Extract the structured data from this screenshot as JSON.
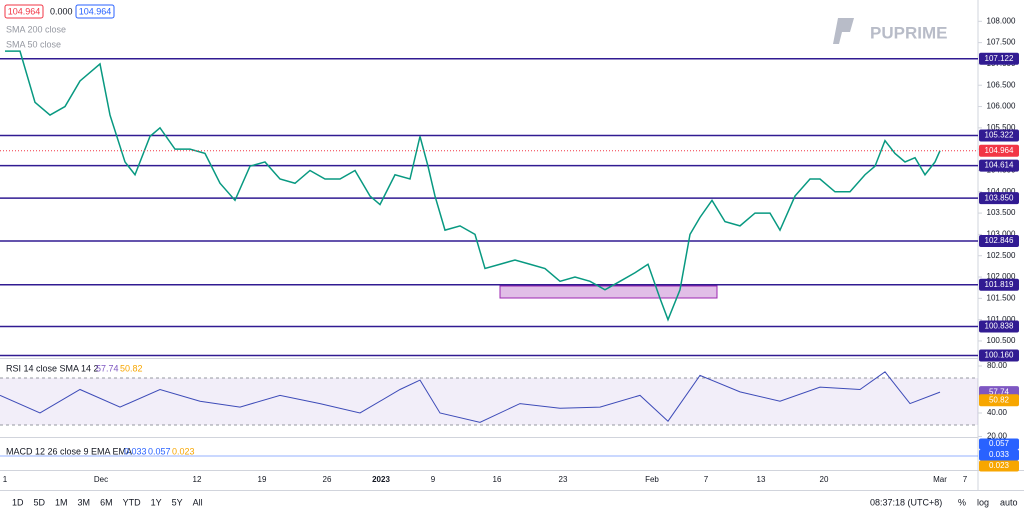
{
  "chart_data": {
    "type": "line",
    "logo": "PUPRIME",
    "legend_values": [
      "104.964",
      "0.000",
      "104.964"
    ],
    "studies": [
      "SMA 200 close",
      "SMA 50 close"
    ],
    "series": [
      {
        "name": "USD Index",
        "color": "#089981",
        "x": [
          5,
          20,
          35,
          50,
          65,
          80,
          95,
          100,
          110,
          125,
          135,
          150,
          160,
          175,
          190,
          205,
          220,
          235,
          250,
          265,
          280,
          295,
          310,
          325,
          340,
          355,
          370,
          380,
          395,
          410,
          420,
          428,
          435,
          445,
          460,
          475,
          485,
          500,
          515,
          530,
          545,
          560,
          575,
          590,
          605,
          620,
          635,
          648,
          660,
          668,
          680,
          690,
          700,
          712,
          725,
          740,
          755,
          770,
          780,
          795,
          810,
          820,
          835,
          850,
          865,
          875,
          885,
          895,
          905,
          915,
          925,
          935,
          940
        ],
        "values": [
          107.3,
          107.3,
          106.1,
          105.8,
          106.0,
          106.6,
          106.9,
          107.0,
          105.8,
          104.7,
          104.4,
          105.3,
          105.5,
          105.0,
          105.0,
          104.9,
          104.2,
          103.8,
          104.6,
          104.7,
          104.3,
          104.2,
          104.5,
          104.3,
          104.3,
          104.5,
          103.9,
          103.7,
          104.4,
          104.3,
          105.3,
          104.6,
          103.9,
          103.1,
          103.2,
          103.0,
          102.2,
          102.3,
          102.4,
          102.3,
          102.2,
          101.9,
          102.0,
          101.9,
          101.7,
          101.9,
          102.1,
          102.3,
          101.5,
          101.0,
          101.7,
          103.0,
          103.4,
          103.8,
          103.3,
          103.2,
          103.5,
          103.5,
          103.1,
          103.9,
          104.3,
          104.3,
          104.0,
          104.0,
          104.4,
          104.6,
          105.2,
          104.9,
          104.7,
          104.8,
          104.4,
          104.7,
          104.964
        ]
      }
    ],
    "current_price": {
      "value": 104.964,
      "label": "104.964"
    },
    "levels": [
      {
        "value": 107.122,
        "label": "107.122"
      },
      {
        "value": 105.322,
        "label": "105.322"
      },
      {
        "value": 104.614,
        "label": "104.614"
      },
      {
        "value": 103.85,
        "label": "103.850"
      },
      {
        "value": 102.846,
        "label": "102.846"
      },
      {
        "value": 101.819,
        "label": "101.819"
      },
      {
        "value": 100.838,
        "label": "100.838"
      },
      {
        "value": 100.16,
        "label": "100.160"
      }
    ],
    "xlim": [
      0,
      978
    ],
    "xticks": [
      {
        "value": 5,
        "label": "1"
      },
      {
        "value": 101,
        "label": "Dec"
      },
      {
        "value": 197,
        "label": "12"
      },
      {
        "value": 262,
        "label": "19"
      },
      {
        "value": 327,
        "label": "26"
      },
      {
        "value": 381,
        "label": "2023"
      },
      {
        "value": 433,
        "label": "9"
      },
      {
        "value": 497,
        "label": "16"
      },
      {
        "value": 563,
        "label": "23"
      },
      {
        "value": 652,
        "label": "Feb"
      },
      {
        "value": 706,
        "label": "7"
      },
      {
        "value": 761,
        "label": "13"
      },
      {
        "value": 824,
        "label": "20"
      },
      {
        "value": 940,
        "label": "Mar"
      },
      {
        "value": 965,
        "label": "7"
      }
    ],
    "ylim": [
      100.1,
      108.5
    ],
    "yticks": [
      {
        "value": 100.5,
        "label": "100.500"
      },
      {
        "value": 101,
        "label": "101.000"
      },
      {
        "value": 101.5,
        "label": "101.500"
      },
      {
        "value": 102,
        "label": "102.000"
      },
      {
        "value": 102.5,
        "label": "102.500"
      },
      {
        "value": 103,
        "label": "103.000"
      },
      {
        "value": 103.5,
        "label": "103.500"
      },
      {
        "value": 104,
        "label": "104.000"
      },
      {
        "value": 104.5,
        "label": "104.500"
      },
      {
        "value": 105,
        "label": "105.000"
      },
      {
        "value": 105.5,
        "label": "105.500"
      },
      {
        "value": 106,
        "label": "106.000"
      },
      {
        "value": 106.5,
        "label": "106.500"
      },
      {
        "value": 107,
        "label": "107.000"
      },
      {
        "value": 107.5,
        "label": "107.500"
      },
      {
        "value": 108,
        "label": "108.000"
      }
    ],
    "rsi": {
      "title": "RSI 14 close SMA 14 2",
      "readouts": [
        "57.74",
        "50.82"
      ],
      "x": [
        0,
        40,
        80,
        120,
        160,
        200,
        240,
        280,
        320,
        360,
        400,
        420,
        440,
        480,
        520,
        560,
        600,
        640,
        668,
        700,
        740,
        780,
        820,
        860,
        885,
        910,
        940
      ],
      "values": [
        55,
        40,
        60,
        45,
        60,
        50,
        45,
        55,
        48,
        40,
        60,
        68,
        40,
        32,
        48,
        44,
        45,
        55,
        33,
        72,
        58,
        50,
        62,
        60,
        75,
        48,
        57.74
      ],
      "color": "#3d4bb8",
      "ylim": [
        17,
        85.1
      ],
      "yticks": [
        {
          "value": 80,
          "label": "80.00"
        },
        {
          "value": 40,
          "label": "40.00"
        },
        {
          "value": 20,
          "label": "20.00"
        }
      ],
      "tags": [
        {
          "value": 57.74,
          "label": "57.74"
        },
        {
          "value": 50.82,
          "label": "50.82"
        }
      ]
    },
    "macd": {
      "title": "MACD 12 26 close 9 EMA EMA",
      "readouts": [
        "0.033",
        "0.057",
        "0.023"
      ],
      "tags": [
        "0.057",
        "0.033",
        "0.023"
      ]
    },
    "toolbar": [
      "1D",
      "5D",
      "1M",
      "3M",
      "6M",
      "YTD",
      "1Y",
      "5Y",
      "All"
    ],
    "clock": "08:37:18 (UTC+8)",
    "scale_buttons": [
      "%",
      "log",
      "auto"
    ]
  }
}
